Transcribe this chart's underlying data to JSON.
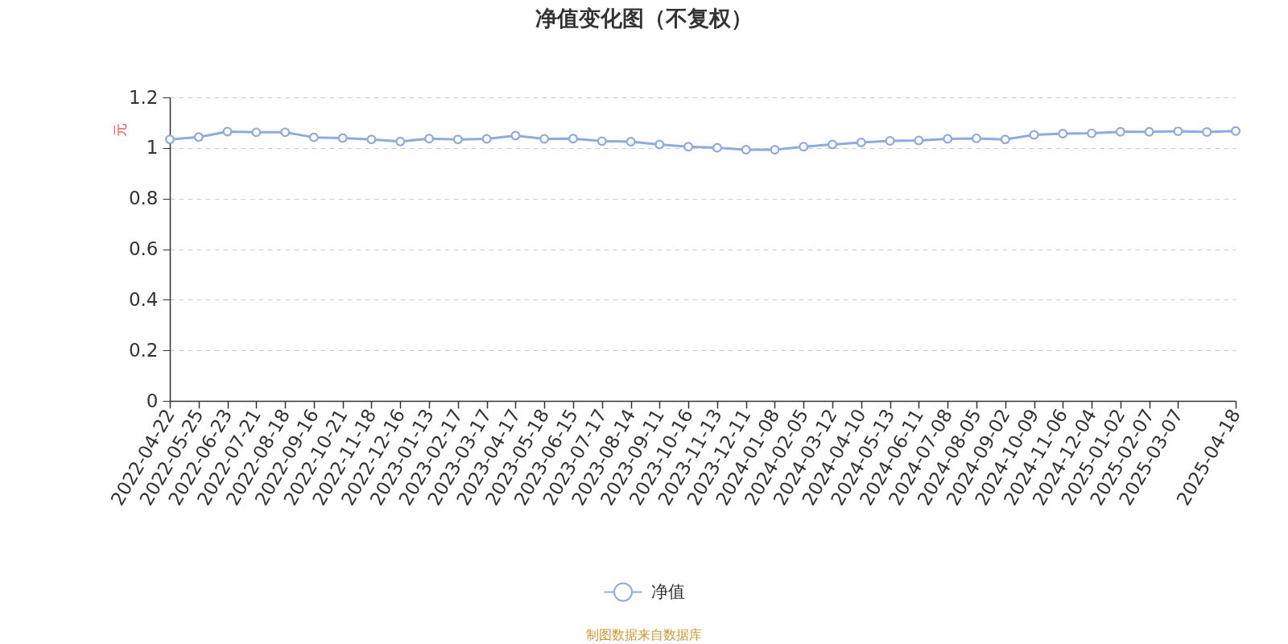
{
  "chart_data": {
    "type": "line",
    "title": "净值变化图（不复权）",
    "ylabel": "元",
    "categories": [
      "2022-04-22",
      "2022-05-25",
      "2022-06-23",
      "2022-07-21",
      "2022-08-18",
      "2022-09-16",
      "2022-10-21",
      "2022-11-18",
      "2022-12-16",
      "2023-01-13",
      "2023-02-17",
      "2023-03-17",
      "2023-04-17",
      "2023-05-18",
      "2023-06-15",
      "2023-07-17",
      "2023-08-14",
      "2023-09-11",
      "2023-10-16",
      "2023-11-13",
      "2023-12-11",
      "2024-01-08",
      "2024-02-05",
      "2024-03-12",
      "2024-04-10",
      "2024-05-13",
      "2024-06-11",
      "2024-07-08",
      "2024-08-05",
      "2024-09-02",
      "2024-10-09",
      "2024-11-06",
      "2024-12-04",
      "2025-01-02",
      "2025-02-07",
      "2025-03-07",
      null,
      "2025-04-18"
    ],
    "series": [
      {
        "name": "净值",
        "color": "#8cacdc",
        "values": [
          1.034,
          1.043,
          1.065,
          1.062,
          1.062,
          1.042,
          1.039,
          1.034,
          1.026,
          1.037,
          1.034,
          1.036,
          1.049,
          1.036,
          1.037,
          1.027,
          1.025,
          1.014,
          1.005,
          1.001,
          0.993,
          0.993,
          1.005,
          1.014,
          1.022,
          1.028,
          1.03,
          1.036,
          1.038,
          1.034,
          1.052,
          1.057,
          1.058,
          1.064,
          1.064,
          1.066,
          1.063,
          1.067
        ]
      }
    ],
    "ylim": [
      0,
      1.2
    ],
    "yticks": [
      0,
      0.2,
      0.4,
      0.6,
      0.8,
      1,
      1.2
    ],
    "grid": "y",
    "legend": "bottom",
    "marker": "circle",
    "line_style": "solid",
    "annotations": [
      "制图数据来自数据库"
    ]
  }
}
